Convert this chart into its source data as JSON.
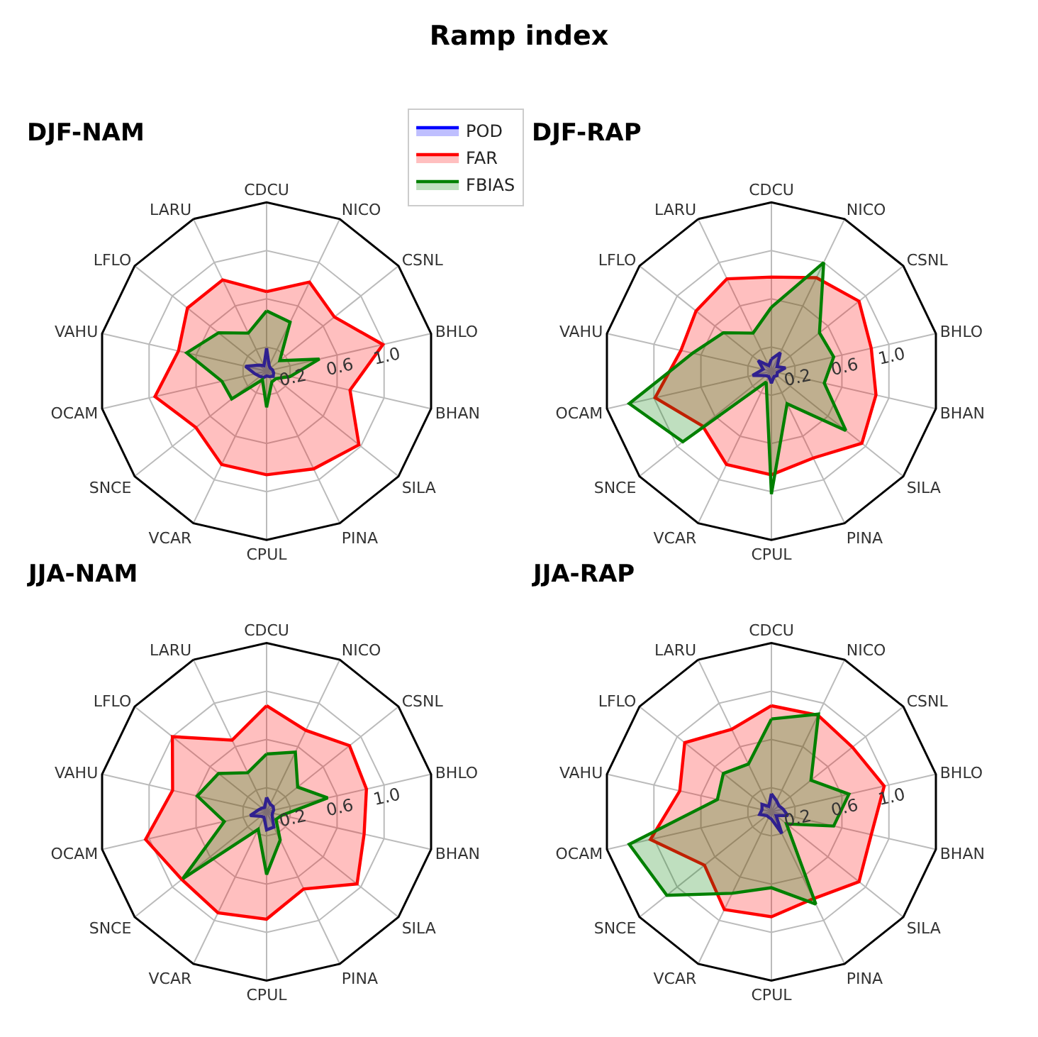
{
  "chart_data": [
    {
      "type": "other",
      "title": "Ramp index"
    },
    {
      "type": "radar",
      "title": "DJF-NAM",
      "categories": [
        "CDCU",
        "NICO",
        "CSNL",
        "BHLO",
        "BHAN",
        "SILA",
        "PINA",
        "CPUL",
        "VCAR",
        "SNCE",
        "OCAM",
        "VAHU",
        "LFLO",
        "LARU"
      ],
      "ylim": [
        0,
        1.4
      ],
      "yticks": [
        {
          "value": 0.2,
          "label": "0.2"
        },
        {
          "value": 0.6,
          "label": "0.6"
        },
        {
          "value": 1.0,
          "label": "1.0"
        }
      ],
      "grid": true,
      "legend": "top right",
      "series": [
        {
          "name": "POD",
          "color": "#0000ff",
          "values": [
            0.19,
            0.05,
            0.04,
            0.05,
            0.06,
            0.07,
            0.05,
            0.04,
            0.06,
            0.07,
            0.1,
            0.18,
            0.08,
            0.05
          ]
        },
        {
          "name": "FAR",
          "color": "#ff0000",
          "values": [
            0.66,
            0.82,
            0.72,
            0.99,
            0.71,
            0.98,
            0.9,
            0.86,
            0.86,
            0.75,
            0.95,
            0.75,
            0.84,
            0.84
          ]
        },
        {
          "name": "FBIAS",
          "color": "#008000",
          "values": [
            0.5,
            0.45,
            0.14,
            0.45,
            0.2,
            0.1,
            0.1,
            0.3,
            0.08,
            0.37,
            0.38,
            0.68,
            0.51,
            0.35
          ]
        }
      ]
    },
    {
      "type": "radar",
      "title": "DJF-RAP",
      "categories": [
        "CDCU",
        "NICO",
        "CSNL",
        "BHLO",
        "BHAN",
        "SILA",
        "PINA",
        "CPUL",
        "VCAR",
        "SNCE",
        "OCAM",
        "VAHU",
        "LFLO",
        "LARU"
      ],
      "ylim": [
        0,
        1.4
      ],
      "yticks": [
        {
          "value": 0.2,
          "label": "0.2"
        },
        {
          "value": 0.6,
          "label": "0.6"
        },
        {
          "value": 1.0,
          "label": "1.0"
        }
      ],
      "grid": true,
      "series": [
        {
          "color": "#0000ff",
          "values": [
            0.1,
            0.17,
            0.06,
            0.12,
            0.05,
            0.06,
            0.05,
            0.1,
            0.05,
            0.06,
            0.16,
            0.07,
            0.14,
            0.05
          ]
        },
        {
          "color": "#ff0000",
          "values": [
            0.78,
            0.86,
            0.93,
            0.85,
            0.89,
            0.96,
            0.8,
            0.86,
            0.86,
            0.73,
            0.99,
            0.77,
            0.8,
            0.85
          ]
        },
        {
          "color": "#008000",
          "values": [
            0.53,
            1.0,
            0.51,
            0.53,
            0.45,
            0.79,
            0.3,
            1.02,
            0.1,
            0.94,
            1.21,
            0.67,
            0.51,
            0.35
          ]
        }
      ]
    },
    {
      "type": "radar",
      "title": "JJA-NAM",
      "categories": [
        "CDCU",
        "NICO",
        "CSNL",
        "BHLO",
        "BHAN",
        "SILA",
        "PINA",
        "CPUL",
        "VCAR",
        "SNCE",
        "OCAM",
        "VAHU",
        "LFLO",
        "LARU"
      ],
      "ylim": [
        0,
        1.4
      ],
      "yticks": [
        {
          "value": 0.2,
          "label": "0.2"
        },
        {
          "value": 0.6,
          "label": "0.6"
        },
        {
          "value": 1.0,
          "label": "1.0"
        }
      ],
      "grid": true,
      "series": [
        {
          "color": "#0000ff",
          "values": [
            0.12,
            0.07,
            0.07,
            0.06,
            0.05,
            0.06,
            0.14,
            0.15,
            0.05,
            0.06,
            0.14,
            0.07,
            0.05,
            0.04
          ]
        },
        {
          "color": "#ff0000",
          "values": [
            0.88,
            0.75,
            0.88,
            0.85,
            0.83,
            0.96,
            0.71,
            0.89,
            0.93,
            0.9,
            1.03,
            0.8,
            1.0,
            0.66
          ]
        },
        {
          "color": "#008000",
          "values": [
            0.48,
            0.55,
            0.33,
            0.52,
            0.13,
            0.1,
            0.26,
            0.52,
            0.16,
            0.89,
            0.36,
            0.59,
            0.51,
            0.36
          ]
        }
      ]
    },
    {
      "type": "radar",
      "title": "JJA-RAP",
      "categories": [
        "CDCU",
        "NICO",
        "CSNL",
        "BHLO",
        "BHAN",
        "SILA",
        "PINA",
        "CPUL",
        "VCAR",
        "SNCE",
        "OCAM",
        "VAHU",
        "LFLO",
        "LARU"
      ],
      "ylim": [
        0,
        1.4
      ],
      "yticks": [
        {
          "value": 0.2,
          "label": "0.2"
        },
        {
          "value": 0.6,
          "label": "0.6"
        },
        {
          "value": 1.0,
          "label": "1.0"
        }
      ],
      "grid": true,
      "series": [
        {
          "color": "#0000ff",
          "values": [
            0.15,
            0.1,
            0.08,
            0.1,
            0.14,
            0.05,
            0.2,
            0.06,
            0.05,
            0.05,
            0.1,
            0.08,
            0.1,
            0.05
          ]
        },
        {
          "color": "#ff0000",
          "values": [
            0.88,
            0.89,
            0.86,
            0.96,
            0.85,
            0.93,
            0.8,
            0.87,
            0.9,
            0.71,
            1.03,
            0.78,
            0.92,
            0.76
          ]
        },
        {
          "color": "#008000",
          "values": [
            0.77,
            0.9,
            0.42,
            0.66,
            0.53,
            0.16,
            0.85,
            0.63,
            0.75,
            1.11,
            1.21,
            0.46,
            0.51,
            0.44
          ]
        }
      ]
    }
  ]
}
